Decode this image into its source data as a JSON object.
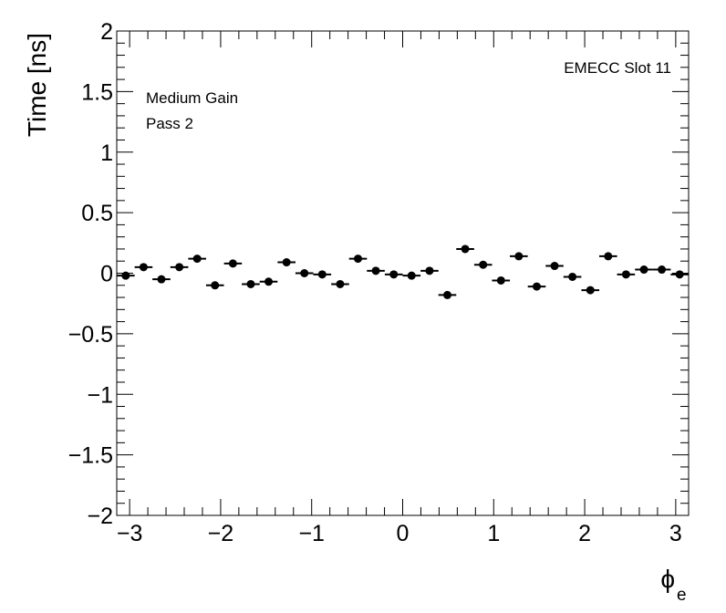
{
  "chart_data": {
    "type": "scatter",
    "xlabel": "ϕ",
    "xlabel_subscript": "e",
    "ylabel": "Time [ns]",
    "xlim": [
      -3.1416,
      3.1416
    ],
    "ylim": [
      -2,
      2
    ],
    "x_ticks": [
      "−3",
      "−2",
      "−1",
      "0",
      "1",
      "2",
      "3"
    ],
    "y_ticks": [
      "−2",
      "−1.5",
      "−1",
      "−0.5",
      "0",
      "0.5",
      "1",
      "1.5",
      "2"
    ],
    "annotations": {
      "top_right": "EMECC Slot 11",
      "line1": "Medium Gain",
      "line2": "Pass 2"
    },
    "grid": false,
    "series": [
      {
        "bin_half_width": 0.0982,
        "x": [
          -3.043,
          -2.847,
          -2.651,
          -2.454,
          -2.258,
          -2.062,
          -1.865,
          -1.669,
          -1.473,
          -1.276,
          -1.08,
          -0.884,
          -0.687,
          -0.491,
          -0.295,
          -0.098,
          0.098,
          0.295,
          0.491,
          0.687,
          0.884,
          1.08,
          1.276,
          1.473,
          1.669,
          1.865,
          2.062,
          2.258,
          2.454,
          2.651,
          2.847,
          3.043
        ],
        "values": [
          -0.02,
          0.05,
          -0.05,
          0.05,
          0.12,
          -0.1,
          0.08,
          -0.09,
          -0.07,
          0.09,
          0.0,
          -0.01,
          -0.09,
          0.12,
          0.02,
          -0.01,
          -0.02,
          0.02,
          -0.18,
          0.2,
          0.07,
          -0.06,
          0.14,
          -0.11,
          0.06,
          -0.03,
          -0.14,
          0.14,
          -0.01,
          0.03,
          0.03,
          -0.01
        ]
      }
    ]
  }
}
